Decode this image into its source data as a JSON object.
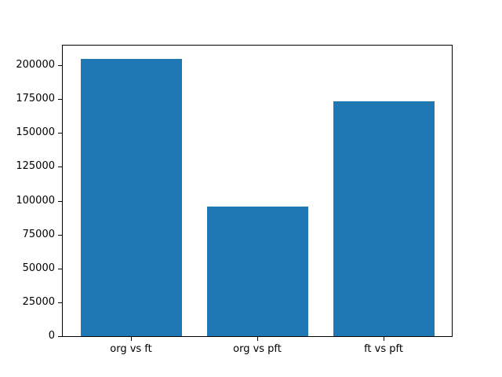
{
  "chart_data": {
    "type": "bar",
    "categories": [
      "org vs ft",
      "org vs pft",
      "ft vs pft"
    ],
    "values": [
      204600,
      95700,
      173300
    ],
    "title": "",
    "xlabel": "",
    "ylabel": "",
    "ylim": [
      0,
      214600
    ],
    "yticks": [
      0,
      25000,
      50000,
      75000,
      100000,
      125000,
      150000,
      175000,
      200000
    ],
    "ytick_labels": [
      "0",
      "25000",
      "50000",
      "75000",
      "100000",
      "125000",
      "150000",
      "175000",
      "200000"
    ],
    "bar_color": "#1f77b4",
    "bar_width_fraction": 0.8,
    "x_margin_units": 0.54,
    "grid": false,
    "legend": null,
    "background_color": "#ffffff",
    "axis_color": "#000000"
  }
}
